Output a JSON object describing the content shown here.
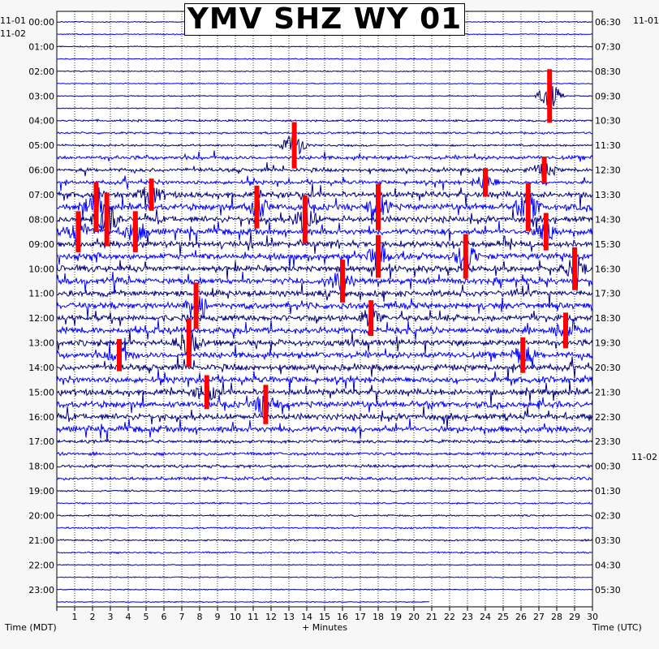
{
  "header": {
    "title": "YMV SHZ WY 01"
  },
  "corners": {
    "left_top": "11-01",
    "left_date": "11-02",
    "right_top": "11-01",
    "right_mid": "11-02"
  },
  "axes": {
    "left_title": "Time (MDT)",
    "bottom_title": "+ Minutes",
    "right_title": "Time (UTC)"
  },
  "colors": {
    "dark_trace": "#000080",
    "light_trace": "#0000ff",
    "clip": "#ff0000",
    "background": "#ffffff",
    "grid_dots": "#000000"
  },
  "chart_data": {
    "type": "heatmap",
    "title": "YMV SHZ WY 01",
    "xlabel": "+ Minutes",
    "ylabel": "Time (MDT)",
    "y2label": "Time (UTC)",
    "x_ticks": [
      "1",
      "2",
      "3",
      "4",
      "5",
      "6",
      "7",
      "8",
      "9",
      "10",
      "11",
      "12",
      "13",
      "14",
      "15",
      "16",
      "17",
      "18",
      "19",
      "20",
      "21",
      "22",
      "23",
      "24",
      "25",
      "26",
      "27",
      "28",
      "29",
      "30"
    ],
    "xlim": [
      0,
      30
    ],
    "rows_per_hour": 2,
    "row_count": 48,
    "left_ticks": [
      "00:00",
      "01:00",
      "02:00",
      "03:00",
      "04:00",
      "05:00",
      "06:00",
      "07:00",
      "08:00",
      "09:00",
      "10:00",
      "11:00",
      "12:00",
      "13:00",
      "14:00",
      "15:00",
      "16:00",
      "17:00",
      "18:00",
      "19:00",
      "20:00",
      "21:00",
      "22:00",
      "23:00"
    ],
    "right_ticks": [
      "06:30",
      "07:30",
      "08:30",
      "09:30",
      "10:30",
      "11:30",
      "12:30",
      "13:30",
      "14:30",
      "15:30",
      "16:30",
      "17:30",
      "18:30",
      "19:30",
      "20:30",
      "21:30",
      "22:30",
      "23:30",
      "00:30",
      "01:30",
      "02:30",
      "03:30",
      "04:30",
      "05:30"
    ],
    "trace_colors_alternating": [
      "#000080",
      "#0000ff"
    ],
    "events": [
      {
        "row": 10,
        "minute": 13.3,
        "level": 2.6
      },
      {
        "row": 6,
        "minute": 27.6,
        "level": 3.0
      },
      {
        "row": 12,
        "minute": 27.3,
        "level": 1.5
      },
      {
        "row": 13,
        "minute": 24.0,
        "level": 1.6
      },
      {
        "row": 14,
        "minute": 5.3,
        "level": 1.8
      },
      {
        "row": 15,
        "minute": 2.2,
        "level": 2.8
      },
      {
        "row": 15,
        "minute": 11.2,
        "level": 2.4
      },
      {
        "row": 15,
        "minute": 18.0,
        "level": 2.6
      },
      {
        "row": 15,
        "minute": 26.4,
        "level": 2.7
      },
      {
        "row": 16,
        "minute": 2.8,
        "level": 3.0
      },
      {
        "row": 16,
        "minute": 13.9,
        "level": 2.7
      },
      {
        "row": 17,
        "minute": 1.2,
        "level": 2.3
      },
      {
        "row": 17,
        "minute": 4.4,
        "level": 2.3
      },
      {
        "row": 17,
        "minute": 27.4,
        "level": 2.1
      },
      {
        "row": 19,
        "minute": 22.9,
        "level": 2.5
      },
      {
        "row": 19,
        "minute": 18.0,
        "level": 2.4
      },
      {
        "row": 20,
        "minute": 29.0,
        "level": 2.4
      },
      {
        "row": 21,
        "minute": 16.0,
        "level": 2.4
      },
      {
        "row": 23,
        "minute": 7.8,
        "level": 2.6
      },
      {
        "row": 24,
        "minute": 17.6,
        "level": 2.0
      },
      {
        "row": 25,
        "minute": 28.5,
        "level": 2.0
      },
      {
        "row": 26,
        "minute": 7.4,
        "level": 2.7
      },
      {
        "row": 27,
        "minute": 26.1,
        "level": 2.0
      },
      {
        "row": 27,
        "minute": 3.5,
        "level": 1.8
      },
      {
        "row": 30,
        "minute": 8.4,
        "level": 1.9
      },
      {
        "row": 31,
        "minute": 11.7,
        "level": 2.2
      }
    ]
  }
}
